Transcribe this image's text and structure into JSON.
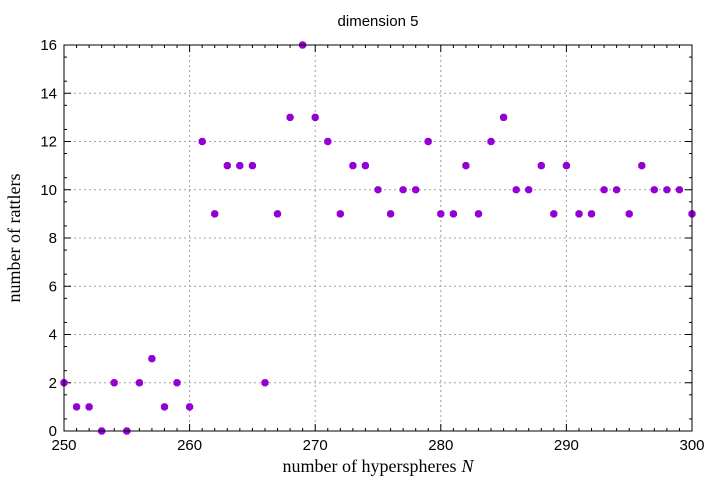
{
  "chart_data": {
    "type": "scatter",
    "title": "dimension 5",
    "xlabel": "number of hyperspheres",
    "xlabel_var": "N",
    "ylabel": "number of rattlers",
    "xlim": [
      250,
      300
    ],
    "ylim": [
      0,
      16
    ],
    "xticks": [
      250,
      260,
      270,
      280,
      290,
      300
    ],
    "yticks": [
      0,
      2,
      4,
      6,
      8,
      10,
      12,
      14,
      16
    ],
    "grid": true,
    "marker_color": "#9400d3",
    "x": [
      250,
      251,
      252,
      253,
      254,
      255,
      256,
      257,
      258,
      259,
      260,
      261,
      262,
      263,
      264,
      265,
      266,
      267,
      268,
      269,
      270,
      271,
      272,
      273,
      274,
      275,
      276,
      277,
      278,
      279,
      280,
      281,
      282,
      283,
      284,
      285,
      286,
      287,
      288,
      289,
      290,
      291,
      292,
      293,
      294,
      295,
      296,
      297,
      298,
      299,
      300
    ],
    "y": [
      2,
      1,
      1,
      0,
      2,
      0,
      2,
      3,
      1,
      2,
      1,
      12,
      9,
      11,
      11,
      11,
      2,
      9,
      13,
      16,
      13,
      12,
      9,
      11,
      11,
      10,
      9,
      10,
      10,
      12,
      9,
      9,
      11,
      9,
      12,
      13,
      10,
      10,
      11,
      9,
      11,
      9,
      9,
      10,
      10,
      9,
      11,
      10,
      10,
      10,
      9
    ]
  }
}
